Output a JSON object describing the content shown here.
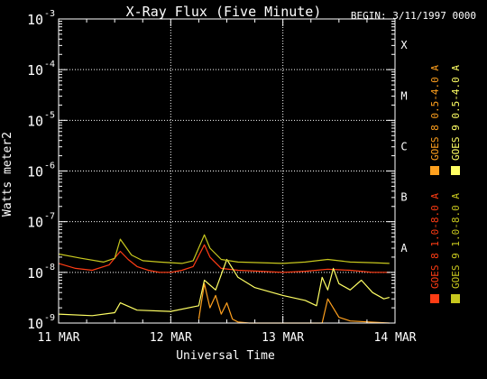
{
  "chart_data": {
    "type": "line",
    "title": "X-Ray Flux (Five Minute)",
    "begin_label": "BEGIN: 3/11/1997 0000",
    "xlabel": "Universal Time",
    "ylabel": "Watts meter2",
    "y_log_scale": true,
    "ylim": [
      1e-09,
      0.001
    ],
    "xlim": [
      0,
      3
    ],
    "x_unit": "days since 11 MAR 1997 0000 UT",
    "x_ticks": [
      {
        "value": 0,
        "label": "11 MAR"
      },
      {
        "value": 1,
        "label": "12 MAR"
      },
      {
        "value": 2,
        "label": "13 MAR"
      },
      {
        "value": 3,
        "label": "14 MAR"
      }
    ],
    "y_ticks": [
      {
        "exp": -9,
        "base": "10",
        "sup": "-9"
      },
      {
        "exp": -8,
        "base": "10",
        "sup": "-8"
      },
      {
        "exp": -7,
        "base": "10",
        "sup": "-7"
      },
      {
        "exp": -6,
        "base": "10",
        "sup": "-6"
      },
      {
        "exp": -5,
        "base": "10",
        "sup": "-5"
      },
      {
        "exp": -4,
        "base": "10",
        "sup": "-4"
      },
      {
        "exp": -3,
        "base": "10",
        "sup": "-3"
      }
    ],
    "flare_classes": [
      {
        "label": "A",
        "exp": -8
      },
      {
        "label": "B",
        "exp": -7
      },
      {
        "label": "C",
        "exp": -6
      },
      {
        "label": "M",
        "exp": -5
      },
      {
        "label": "X",
        "exp": -4
      }
    ],
    "grid": {
      "horizontal": true,
      "vertical": true,
      "style": "dotted"
    },
    "legend_placement": "right, rotated vertical",
    "series": [
      {
        "name": "GOES 8 1.0-8.0 A",
        "color": "#ff3c14",
        "x": [
          0,
          0.15,
          0.3,
          0.45,
          0.55,
          0.62,
          0.7,
          0.8,
          0.9,
          1.0,
          1.1,
          1.2,
          1.3,
          1.35,
          1.45,
          1.6,
          1.8,
          2.0,
          2.2,
          2.4,
          2.6,
          2.8,
          2.95
        ],
        "y": [
          1.5e-08,
          1.2e-08,
          1.1e-08,
          1.4e-08,
          2.6e-08,
          1.8e-08,
          1.3e-08,
          1.1e-08,
          1e-08,
          1e-08,
          1.1e-08,
          1.3e-08,
          3.5e-08,
          2e-08,
          1.2e-08,
          1.1e-08,
          1.05e-08,
          1e-08,
          1.05e-08,
          1.15e-08,
          1.1e-08,
          1e-08,
          1e-08
        ]
      },
      {
        "name": "GOES 8 0.5-4.0 A",
        "color": "#ffa01e",
        "x": [
          1.25,
          1.3,
          1.35,
          1.4,
          1.45,
          1.5,
          1.55,
          1.6,
          1.7,
          2.0,
          2.35,
          2.4,
          2.5,
          2.6,
          2.95
        ],
        "y": [
          1.2e-09,
          6e-09,
          2e-09,
          3.5e-09,
          1.5e-09,
          2.5e-09,
          1.2e-09,
          1.05e-09,
          1e-09,
          1e-09,
          1e-09,
          3e-09,
          1.3e-09,
          1.1e-09,
          1e-09
        ]
      },
      {
        "name": "GOES 9 0.5-4.0 A",
        "color": "#ffff64",
        "x": [
          0,
          0.3,
          0.5,
          0.55,
          0.7,
          1.0,
          1.25,
          1.3,
          1.4,
          1.5,
          1.6,
          1.75,
          2.0,
          2.2,
          2.3,
          2.35,
          2.4,
          2.45,
          2.5,
          2.6,
          2.7,
          2.8,
          2.9,
          2.95
        ],
        "y": [
          1.5e-09,
          1.4e-09,
          1.6e-09,
          2.5e-09,
          1.8e-09,
          1.7e-09,
          2.2e-09,
          7e-09,
          4.5e-09,
          1.8e-08,
          8e-09,
          5e-09,
          3.5e-09,
          2.8e-09,
          2.2e-09,
          8e-09,
          4.5e-09,
          1.2e-08,
          6e-09,
          4.5e-09,
          7e-09,
          4e-09,
          3e-09,
          3.2e-09
        ]
      },
      {
        "name": "GOES 9 1.0-8.0 A",
        "color": "#c8c81e",
        "x": [
          0,
          0.2,
          0.4,
          0.5,
          0.55,
          0.65,
          0.75,
          0.9,
          1.1,
          1.2,
          1.3,
          1.35,
          1.45,
          1.6,
          1.8,
          2.0,
          2.2,
          2.4,
          2.6,
          2.8,
          2.95
        ],
        "y": [
          2.3e-08,
          1.9e-08,
          1.6e-08,
          1.9e-08,
          4.5e-08,
          2.2e-08,
          1.7e-08,
          1.6e-08,
          1.5e-08,
          1.7e-08,
          5.5e-08,
          3e-08,
          1.8e-08,
          1.6e-08,
          1.55e-08,
          1.5e-08,
          1.6e-08,
          1.8e-08,
          1.6e-08,
          1.55e-08,
          1.5e-08
        ]
      }
    ]
  }
}
